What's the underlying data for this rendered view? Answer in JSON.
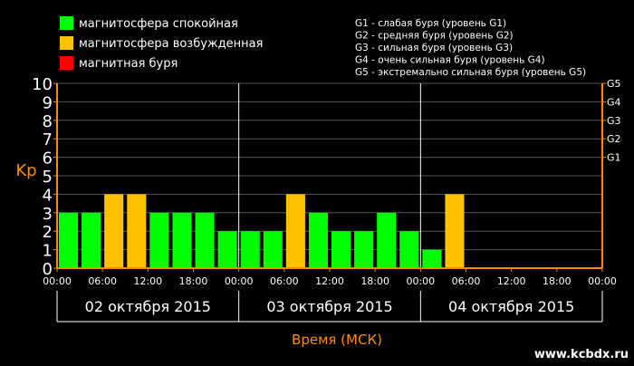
{
  "chart_data": {
    "type": "bar",
    "ylabel": "Kp",
    "xlabel": "Время (МСК)",
    "ylim": [
      0,
      10
    ],
    "yticks": [
      0,
      1,
      2,
      3,
      4,
      5,
      6,
      7,
      8,
      9,
      10
    ],
    "grid": true,
    "legend_position": "top-left",
    "legend": [
      {
        "label": "магнитосфера спокойная",
        "color": "#00ff00"
      },
      {
        "label": "магнитосфера возбужденная",
        "color": "#ffc000"
      },
      {
        "label": "магнитная буря",
        "color": "#ff0000"
      }
    ],
    "storm_scale": [
      "G1 - слабая буря (уровень G1)",
      "G2 - средняя буря (уровень G2)",
      "G3 - сильная буря (уровень G3)",
      "G4 - очень сильная буря (уровень G4)",
      "G5 - экстремально сильная буря (уровень G5)"
    ],
    "g_levels": [
      {
        "label": "G1",
        "kp": 6
      },
      {
        "label": "G2",
        "kp": 7
      },
      {
        "label": "G3",
        "kp": 8
      },
      {
        "label": "G4",
        "kp": 9
      },
      {
        "label": "G5",
        "kp": 10
      }
    ],
    "time_ticks": [
      "00:00",
      "06:00",
      "12:00",
      "18:00",
      "00:00",
      "06:00",
      "12:00",
      "18:00",
      "00:00",
      "06:00",
      "12:00",
      "18:00",
      "00:00"
    ],
    "days": [
      "02 октября 2015",
      "03 октября 2015",
      "04 октября 2015"
    ],
    "slots_per_day": 8,
    "values": [
      3,
      3,
      4,
      4,
      3,
      3,
      3,
      2,
      2,
      2,
      4,
      3,
      2,
      2,
      3,
      2,
      1,
      4
    ],
    "colors": {
      "quiet": "#00ff00",
      "active": "#ffc000",
      "storm": "#ff0000"
    },
    "axis_color": "#ff8c00"
  },
  "watermark": "www.kcbdx.ru"
}
